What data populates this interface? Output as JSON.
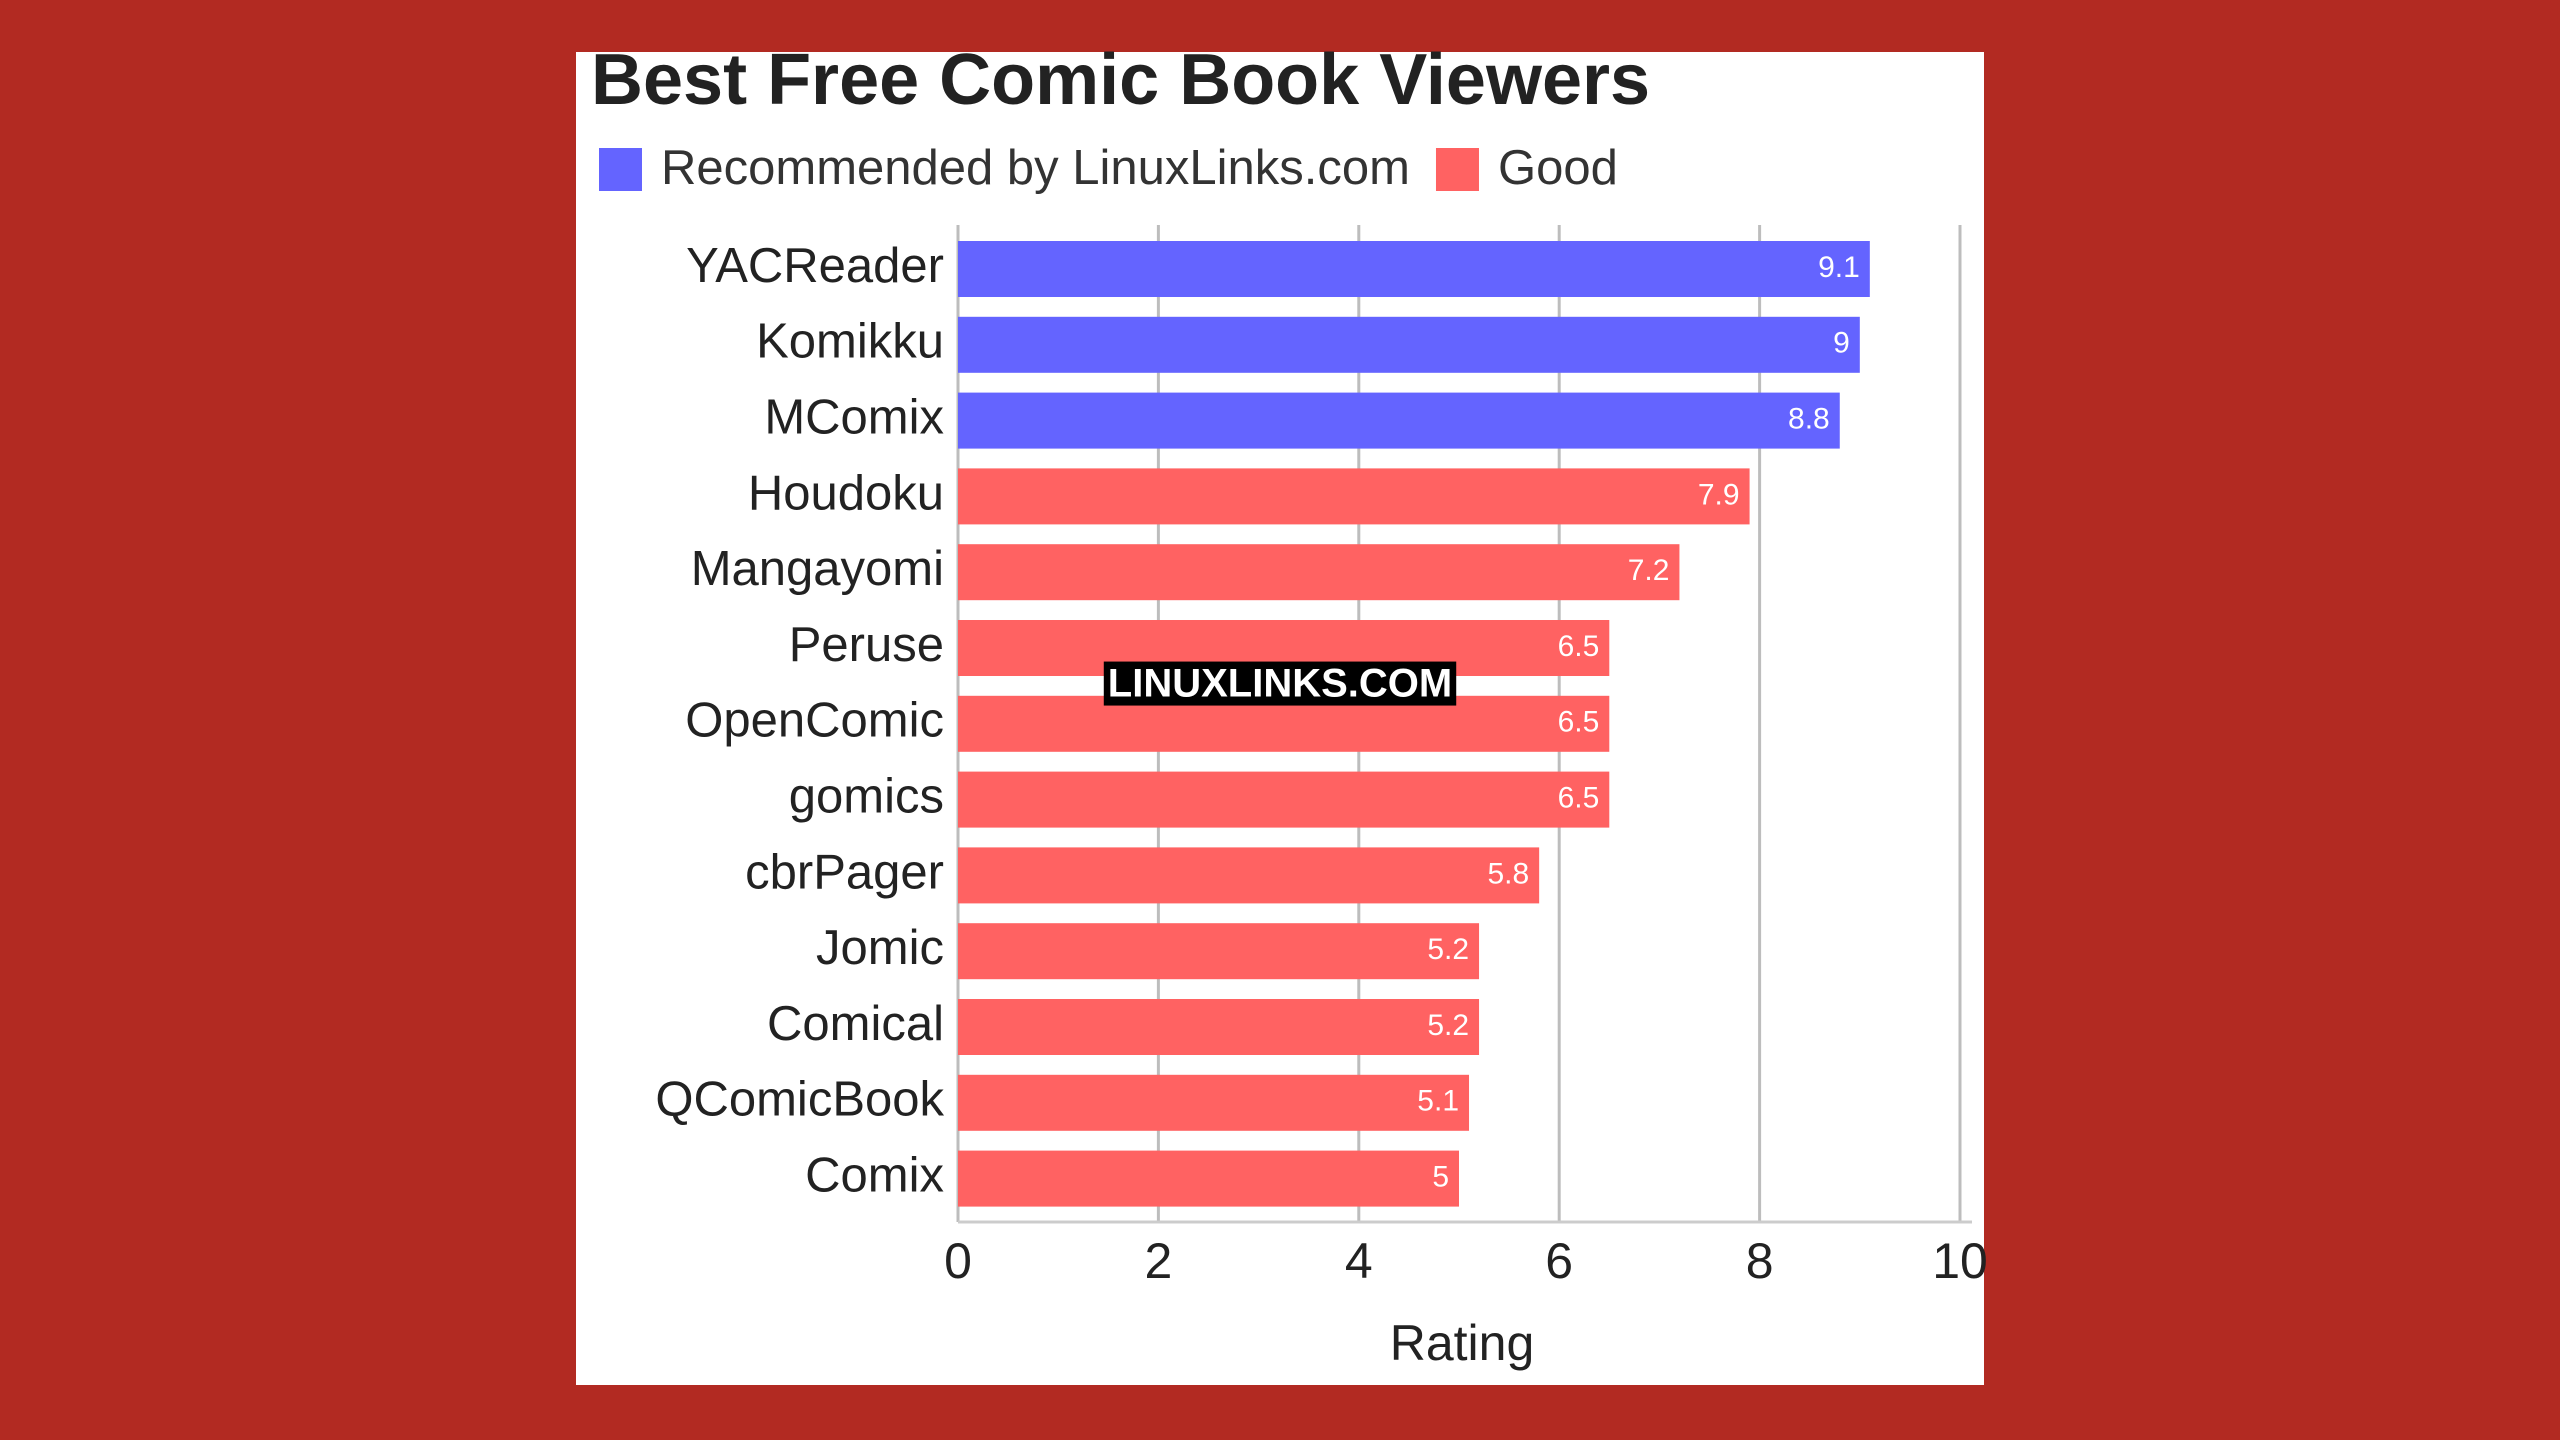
{
  "chart_data": {
    "type": "bar",
    "orientation": "horizontal",
    "title": "Best Free Comic Book Viewers",
    "categories": [
      "YACReader",
      "Komikku",
      "MComix",
      "Houdoku",
      "Mangayomi",
      "Peruse",
      "OpenComic",
      "gomics",
      "cbrPager",
      "Jomic",
      "Comical",
      "QComicBook",
      "Comix"
    ],
    "series": [
      {
        "name": "Recommended by LinuxLinks.com",
        "color": "#6464ff",
        "values": [
          9.1,
          9,
          8.8,
          null,
          null,
          null,
          null,
          null,
          null,
          null,
          null,
          null,
          null
        ]
      },
      {
        "name": "Good",
        "color": "#ff6262",
        "values": [
          null,
          null,
          null,
          7.9,
          7.2,
          6.5,
          6.5,
          6.5,
          5.8,
          5.2,
          5.2,
          5.1,
          5
        ]
      }
    ],
    "xlim": [
      0,
      10
    ],
    "xticks": [
      0,
      2,
      4,
      6,
      8,
      10
    ],
    "xlabel": "Rating",
    "grid": true,
    "watermark": "LINUXLINKS.COM"
  }
}
